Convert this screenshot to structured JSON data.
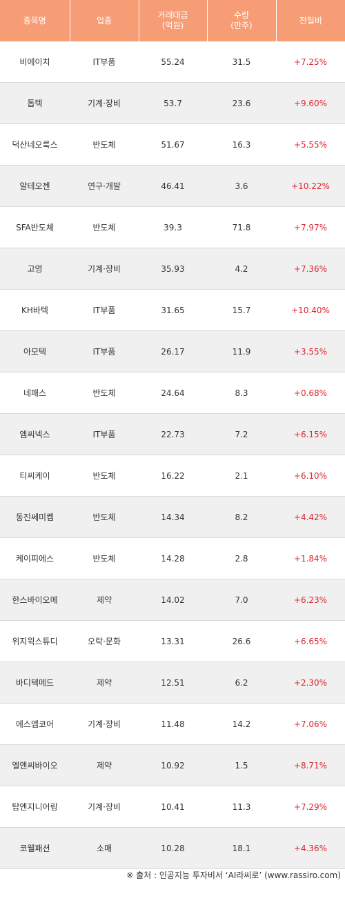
{
  "header": {
    "col1": "종목명",
    "col2": "업종",
    "col3_line1": "거래대금",
    "col3_line2": "(억원)",
    "col4_line1": "수량",
    "col4_line2": "(만주)",
    "col5": "전일비"
  },
  "rows": [
    {
      "name": "비에이치",
      "sector": "IT부품",
      "amount": "55.24",
      "volume": "31.5",
      "change": "+7.25%"
    },
    {
      "name": "톱텍",
      "sector": "기계·장비",
      "amount": "53.7",
      "volume": "23.6",
      "change": "+9.60%"
    },
    {
      "name": "덕산네오룩스",
      "sector": "반도체",
      "amount": "51.67",
      "volume": "16.3",
      "change": "+5.55%"
    },
    {
      "name": "알테오젠",
      "sector": "연구·개발",
      "amount": "46.41",
      "volume": "3.6",
      "change": "+10.22%"
    },
    {
      "name": "SFA반도체",
      "sector": "반도체",
      "amount": "39.3",
      "volume": "71.8",
      "change": "+7.97%"
    },
    {
      "name": "고영",
      "sector": "기계·장비",
      "amount": "35.93",
      "volume": "4.2",
      "change": "+7.36%"
    },
    {
      "name": "KH바텍",
      "sector": "IT부품",
      "amount": "31.65",
      "volume": "15.7",
      "change": "+10.40%"
    },
    {
      "name": "아모텍",
      "sector": "IT부품",
      "amount": "26.17",
      "volume": "11.9",
      "change": "+3.55%"
    },
    {
      "name": "네패스",
      "sector": "반도체",
      "amount": "24.64",
      "volume": "8.3",
      "change": "+0.68%"
    },
    {
      "name": "엠씨넥스",
      "sector": "IT부품",
      "amount": "22.73",
      "volume": "7.2",
      "change": "+6.15%"
    },
    {
      "name": "티씨케이",
      "sector": "반도체",
      "amount": "16.22",
      "volume": "2.1",
      "change": "+6.10%"
    },
    {
      "name": "동진쎄미켐",
      "sector": "반도체",
      "amount": "14.34",
      "volume": "8.2",
      "change": "+4.42%"
    },
    {
      "name": "케이피에스",
      "sector": "반도체",
      "amount": "14.28",
      "volume": "2.8",
      "change": "+1.84%"
    },
    {
      "name": "한스바이오메",
      "sector": "제약",
      "amount": "14.02",
      "volume": "7.0",
      "change": "+6.23%"
    },
    {
      "name": "위지윅스튜디",
      "sector": "오락·문화",
      "amount": "13.31",
      "volume": "26.6",
      "change": "+6.65%"
    },
    {
      "name": "바디텍메드",
      "sector": "제약",
      "amount": "12.51",
      "volume": "6.2",
      "change": "+2.30%"
    },
    {
      "name": "에스엠코어",
      "sector": "기계·장비",
      "amount": "11.48",
      "volume": "14.2",
      "change": "+7.06%"
    },
    {
      "name": "엘앤씨바이오",
      "sector": "제약",
      "amount": "10.92",
      "volume": "1.5",
      "change": "+8.71%"
    },
    {
      "name": "탑엔지니어링",
      "sector": "기계·장비",
      "amount": "10.41",
      "volume": "11.3",
      "change": "+7.29%"
    },
    {
      "name": "코웰패션",
      "sector": "소매",
      "amount": "10.28",
      "volume": "18.1",
      "change": "+4.36%"
    }
  ],
  "footer": {
    "source": "※ 출처 : 인공지능 투자비서 ‘AI라씨로’ (www.rassiro.com)"
  },
  "colors": {
    "header_bg": "#f79d76",
    "header_text": "#ffffff",
    "row_alt_bg": "#f0f0f0",
    "change_text": "#e0242e"
  }
}
